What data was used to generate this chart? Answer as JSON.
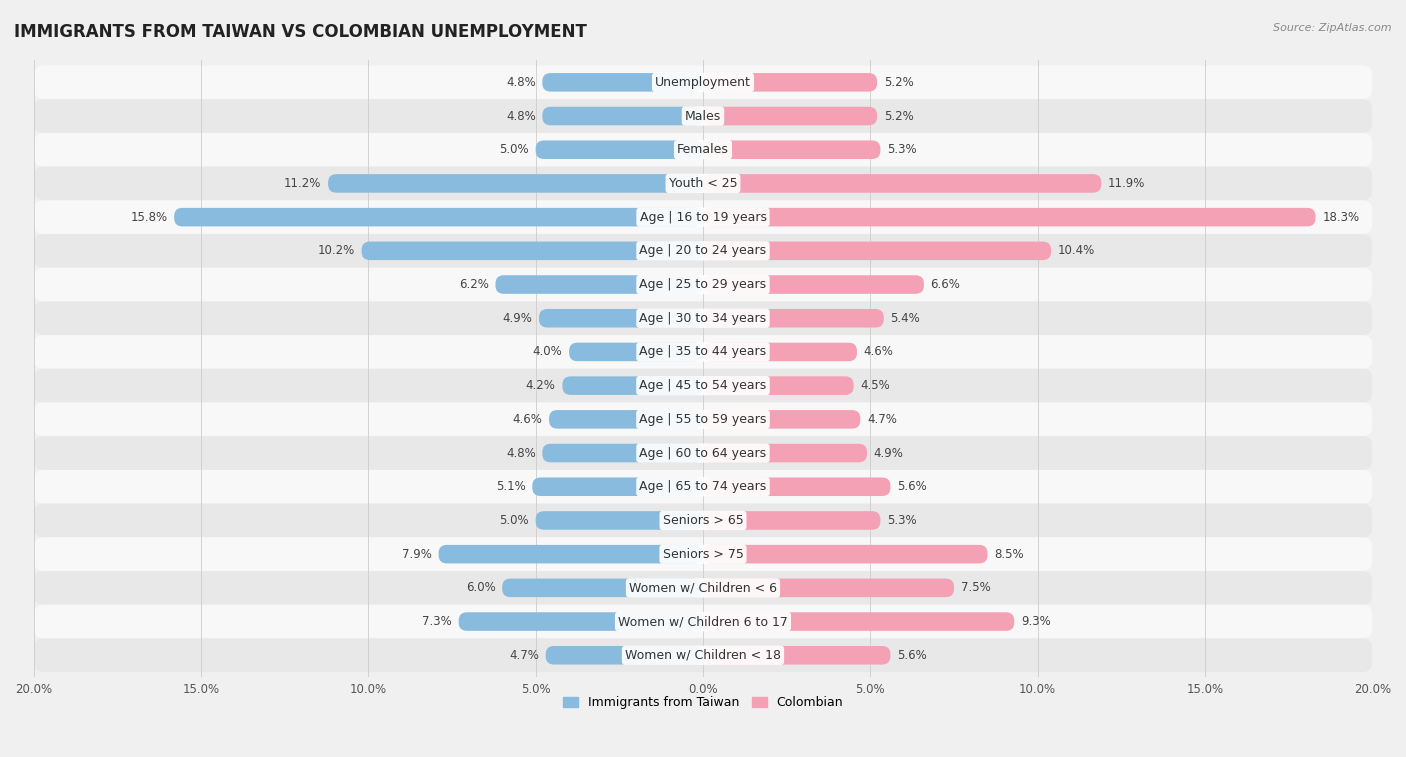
{
  "title": "IMMIGRANTS FROM TAIWAN VS COLOMBIAN UNEMPLOYMENT",
  "source": "Source: ZipAtlas.com",
  "categories": [
    "Unemployment",
    "Males",
    "Females",
    "Youth < 25",
    "Age | 16 to 19 years",
    "Age | 20 to 24 years",
    "Age | 25 to 29 years",
    "Age | 30 to 34 years",
    "Age | 35 to 44 years",
    "Age | 45 to 54 years",
    "Age | 55 to 59 years",
    "Age | 60 to 64 years",
    "Age | 65 to 74 years",
    "Seniors > 65",
    "Seniors > 75",
    "Women w/ Children < 6",
    "Women w/ Children 6 to 17",
    "Women w/ Children < 18"
  ],
  "taiwan_values": [
    4.8,
    4.8,
    5.0,
    11.2,
    15.8,
    10.2,
    6.2,
    4.9,
    4.0,
    4.2,
    4.6,
    4.8,
    5.1,
    5.0,
    7.9,
    6.0,
    7.3,
    4.7
  ],
  "colombian_values": [
    5.2,
    5.2,
    5.3,
    11.9,
    18.3,
    10.4,
    6.6,
    5.4,
    4.6,
    4.5,
    4.7,
    4.9,
    5.6,
    5.3,
    8.5,
    7.5,
    9.3,
    5.6
  ],
  "taiwan_color": "#88bbdd",
  "colombian_color": "#f4a0b5",
  "taiwan_color_highlight": "#5599cc",
  "colombian_color_highlight": "#e8607a",
  "background_color": "#f0f0f0",
  "row_color_even": "#f8f8f8",
  "row_color_odd": "#e8e8e8",
  "bar_height": 0.55,
  "max_val": 20.0,
  "legend_taiwan": "Immigrants from Taiwan",
  "legend_colombian": "Colombian",
  "title_fontsize": 12,
  "label_fontsize": 9,
  "value_fontsize": 8.5,
  "axis_tick_fontsize": 8.5
}
